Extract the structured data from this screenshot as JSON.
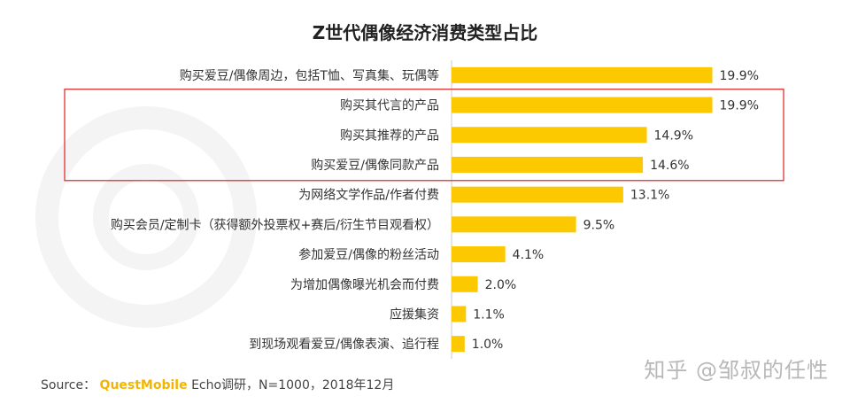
{
  "chart_data": {
    "type": "bar",
    "orientation": "horizontal",
    "title": "Z世代偶像经济消费类型占比",
    "categories": [
      "购买爱豆/偶像周边，包括T恤、写真集、玩偶等",
      "购买其代言的产品",
      "购买其推荐的产品",
      "购买爱豆/偶像同款产品",
      "为网络文学作品/作者付费",
      "购买会员/定制卡（获得额外投票权+赛后/衍生节目观看权）",
      "参加爱豆/偶像的粉丝活动",
      "为增加偶像曝光机会而付费",
      "应援集资",
      "到现场观看爱豆/偶像表演、追行程"
    ],
    "values": [
      19.9,
      19.9,
      14.9,
      14.6,
      13.1,
      9.5,
      4.1,
      2.0,
      1.1,
      1.0
    ],
    "value_labels": [
      "19.9%",
      "19.9%",
      "14.9%",
      "14.6%",
      "13.1%",
      "9.5%",
      "4.1%",
      "2.0%",
      "1.1%",
      "1.0%"
    ],
    "xlim": [
      0,
      20
    ],
    "highlighted_categories": [
      1,
      2,
      3
    ],
    "grid": false,
    "legend": "none"
  },
  "colors": {
    "bar": "#fcc800",
    "highlight_box": "#e02020",
    "axis": "#cccccc"
  },
  "source": {
    "prefix": "Source：",
    "brand": "QuestMobile",
    "suffix": " Echo调研，N=1000，2018年12月"
  },
  "watermark": "知乎 @邹叔的任性",
  "background_logo": "questmobile-watermark-logo"
}
